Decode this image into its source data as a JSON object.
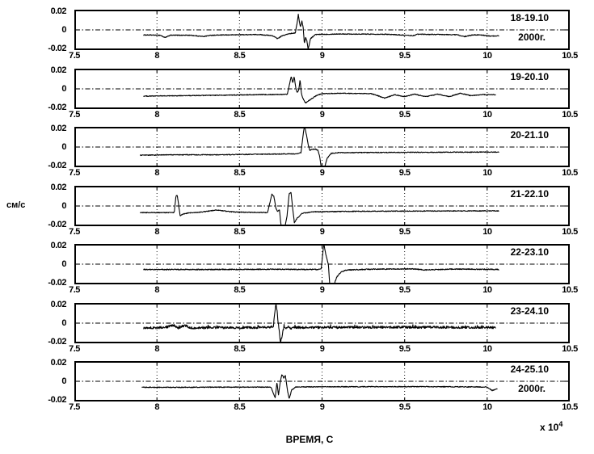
{
  "figure": {
    "ylabel": "см/с",
    "xlabel": "ВРЕМЯ, С",
    "x_multiplier": "x 10",
    "x_multiplier_exp": "4"
  },
  "chart_data": {
    "type": "line",
    "title": "",
    "xlabel": "ВРЕМЯ, С",
    "ylabel": "см/с",
    "x_scale_note": "x 10^4 seconds",
    "xlim": [
      7.5,
      10.5
    ],
    "ylim": [
      -0.02,
      0.02
    ],
    "xticks": [
      7.5,
      8,
      8.5,
      9,
      9.5,
      10,
      10.5
    ],
    "xtick_labels": [
      "7.5",
      "8",
      "8.5",
      "9",
      "9.5",
      "10",
      "10.5"
    ],
    "yticks": [
      0.02,
      0,
      -0.02
    ],
    "ytick_labels": [
      "0.02",
      "0",
      "-0.02"
    ],
    "grid": true,
    "legend": "none",
    "line_color": "#000000",
    "panels": [
      {
        "label": "18-19.10",
        "sublabel": "2000г.",
        "x_start": 7.92,
        "x_end": 10.07,
        "baseline": -0.005,
        "noise": 0.0004,
        "keypoints": [
          [
            7.92,
            -0.0052
          ],
          [
            8.02,
            -0.0055
          ],
          [
            8.05,
            -0.008
          ],
          [
            8.08,
            -0.0055
          ],
          [
            8.2,
            -0.0055
          ],
          [
            8.28,
            -0.0068
          ],
          [
            8.33,
            -0.0055
          ],
          [
            8.5,
            -0.005
          ],
          [
            8.62,
            -0.0048
          ],
          [
            8.7,
            -0.006
          ],
          [
            8.73,
            -0.009
          ],
          [
            8.76,
            -0.006
          ],
          [
            8.8,
            -0.004
          ],
          [
            8.838,
            -0.003
          ],
          [
            8.848,
            0.006
          ],
          [
            8.856,
            0.016
          ],
          [
            8.863,
            0.008
          ],
          [
            8.869,
            0.003
          ],
          [
            8.878,
            0.009
          ],
          [
            8.886,
            0.002
          ],
          [
            8.893,
            -0.014
          ],
          [
            8.9,
            -0.008
          ],
          [
            8.908,
            -0.011
          ],
          [
            8.916,
            -0.02
          ],
          [
            8.93,
            -0.009
          ],
          [
            8.96,
            -0.0048
          ],
          [
            9.1,
            -0.0042
          ],
          [
            9.4,
            -0.0045
          ],
          [
            9.55,
            -0.006
          ],
          [
            9.58,
            -0.0045
          ],
          [
            9.82,
            -0.005
          ],
          [
            9.86,
            -0.007
          ],
          [
            9.92,
            -0.005
          ],
          [
            9.98,
            -0.0055
          ],
          [
            10.02,
            -0.0065
          ],
          [
            10.07,
            -0.006
          ]
        ]
      },
      {
        "label": "19-20.10",
        "sublabel": "",
        "x_start": 7.92,
        "x_end": 10.05,
        "baseline": -0.006,
        "noise": 0.0004,
        "keypoints": [
          [
            7.92,
            -0.0075
          ],
          [
            8.3,
            -0.0068
          ],
          [
            8.6,
            -0.006
          ],
          [
            8.75,
            -0.0058
          ],
          [
            8.79,
            -0.0055
          ],
          [
            8.803,
            0.005
          ],
          [
            8.813,
            0.013
          ],
          [
            8.823,
            0.006
          ],
          [
            8.831,
            0.0125
          ],
          [
            8.841,
            0.001
          ],
          [
            8.849,
            -0.004
          ],
          [
            8.859,
            -0.001
          ],
          [
            8.867,
            0.0095
          ],
          [
            8.875,
            -0.005
          ],
          [
            8.883,
            -0.0095
          ],
          [
            8.9,
            -0.0145
          ],
          [
            8.93,
            -0.011
          ],
          [
            8.97,
            -0.0065
          ],
          [
            9.0,
            -0.005
          ],
          [
            9.1,
            -0.0045
          ],
          [
            9.3,
            -0.005
          ],
          [
            9.38,
            -0.0095
          ],
          [
            9.44,
            -0.006
          ],
          [
            9.5,
            -0.008
          ],
          [
            9.56,
            -0.0055
          ],
          [
            9.63,
            -0.008
          ],
          [
            9.7,
            -0.0055
          ],
          [
            9.77,
            -0.008
          ],
          [
            9.84,
            -0.0045
          ],
          [
            9.9,
            -0.007
          ],
          [
            9.97,
            -0.006
          ],
          [
            10.05,
            -0.006
          ]
        ]
      },
      {
        "label": "20-21.10",
        "sublabel": "",
        "x_start": 7.9,
        "x_end": 10.07,
        "baseline": -0.008,
        "noise": 0.0004,
        "keypoints": [
          [
            7.9,
            -0.0085
          ],
          [
            8.1,
            -0.008
          ],
          [
            8.4,
            -0.008
          ],
          [
            8.6,
            -0.0075
          ],
          [
            8.84,
            -0.007
          ],
          [
            8.872,
            -0.006
          ],
          [
            8.882,
            0.008
          ],
          [
            8.893,
            0.022
          ],
          [
            8.905,
            0.013
          ],
          [
            8.917,
            0.002
          ],
          [
            8.926,
            -0.0035
          ],
          [
            8.94,
            -0.0025
          ],
          [
            8.96,
            -0.002
          ],
          [
            8.975,
            -0.0035
          ],
          [
            8.986,
            -0.01
          ],
          [
            8.996,
            -0.023
          ],
          [
            9.012,
            -0.023
          ],
          [
            9.03,
            -0.012
          ],
          [
            9.055,
            -0.0065
          ],
          [
            9.1,
            -0.0058
          ],
          [
            9.5,
            -0.0055
          ],
          [
            10.0,
            -0.0052
          ],
          [
            10.07,
            -0.0052
          ]
        ]
      },
      {
        "label": "21-22.10",
        "sublabel": "",
        "x_start": 7.9,
        "x_end": 10.07,
        "baseline": -0.0068,
        "noise": 0.0004,
        "keypoints": [
          [
            7.9,
            -0.0068
          ],
          [
            8.08,
            -0.0068
          ],
          [
            8.105,
            -0.0068
          ],
          [
            8.115,
            0.01
          ],
          [
            8.123,
            0.0115
          ],
          [
            8.131,
            0.002
          ],
          [
            8.14,
            -0.01
          ],
          [
            8.155,
            -0.0085
          ],
          [
            8.19,
            -0.0072
          ],
          [
            8.28,
            -0.006
          ],
          [
            8.36,
            -0.0042
          ],
          [
            8.45,
            -0.006
          ],
          [
            8.55,
            -0.0065
          ],
          [
            8.67,
            -0.0068
          ],
          [
            8.696,
            0.012
          ],
          [
            8.708,
            0.0105
          ],
          [
            8.72,
            -0.002
          ],
          [
            8.73,
            -0.0055
          ],
          [
            8.742,
            -0.004
          ],
          [
            8.752,
            -0.021
          ],
          [
            8.775,
            -0.022
          ],
          [
            8.788,
            -0.01
          ],
          [
            8.801,
            0.013
          ],
          [
            8.812,
            0.014
          ],
          [
            8.822,
            -0.002
          ],
          [
            8.832,
            -0.017
          ],
          [
            8.85,
            -0.0125
          ],
          [
            8.88,
            -0.0075
          ],
          [
            8.95,
            -0.006
          ],
          [
            9.2,
            -0.0055
          ],
          [
            9.6,
            -0.0052
          ],
          [
            10.07,
            -0.005
          ]
        ]
      },
      {
        "label": "22-23.10",
        "sublabel": "",
        "x_start": 7.92,
        "x_end": 10.07,
        "baseline": -0.0055,
        "noise": 0.0005,
        "keypoints": [
          [
            7.92,
            -0.0055
          ],
          [
            8.3,
            -0.0055
          ],
          [
            8.7,
            -0.0053
          ],
          [
            8.97,
            -0.0055
          ],
          [
            8.995,
            -0.005
          ],
          [
            9.003,
            0.009
          ],
          [
            9.011,
            0.021
          ],
          [
            9.019,
            0.013
          ],
          [
            9.028,
            0.0065
          ],
          [
            9.038,
            0.0
          ],
          [
            9.047,
            -0.022
          ],
          [
            9.07,
            -0.022
          ],
          [
            9.09,
            -0.013
          ],
          [
            9.115,
            -0.008
          ],
          [
            9.15,
            -0.006
          ],
          [
            9.3,
            -0.0052
          ],
          [
            9.55,
            -0.0048
          ],
          [
            9.62,
            -0.006
          ],
          [
            9.8,
            -0.005
          ],
          [
            10.07,
            -0.0055
          ]
        ]
      },
      {
        "label": "23-24.10",
        "sublabel": "",
        "x_start": 7.92,
        "x_end": 10.05,
        "baseline": -0.0045,
        "noise": 0.0012,
        "spike_prob": 0.03,
        "spike_amp": 0.003,
        "keypoints": [
          [
            7.92,
            -0.0048
          ],
          [
            8.05,
            -0.0045
          ],
          [
            8.1,
            -0.002
          ],
          [
            8.13,
            -0.005
          ],
          [
            8.17,
            -0.0022
          ],
          [
            8.2,
            -0.005
          ],
          [
            8.35,
            -0.0045
          ],
          [
            8.5,
            -0.0048
          ],
          [
            8.68,
            -0.0042
          ],
          [
            8.706,
            -0.003
          ],
          [
            8.714,
            0.012
          ],
          [
            8.721,
            0.021
          ],
          [
            8.728,
            0.013
          ],
          [
            8.734,
            0.001
          ],
          [
            8.741,
            -0.009
          ],
          [
            8.748,
            -0.021
          ],
          [
            8.758,
            -0.013
          ],
          [
            8.77,
            -0.0025
          ],
          [
            8.782,
            -0.006
          ],
          [
            8.795,
            -0.0028
          ],
          [
            8.81,
            -0.0055
          ],
          [
            8.83,
            -0.0045
          ],
          [
            9.0,
            -0.0045
          ],
          [
            9.5,
            -0.0042
          ],
          [
            10.05,
            -0.0045
          ]
        ]
      },
      {
        "label": "24-25.10",
        "sublabel": "2000г.",
        "x_start": 7.91,
        "x_end": 10.06,
        "baseline": -0.0062,
        "noise": 0.0004,
        "keypoints": [
          [
            7.91,
            -0.0062
          ],
          [
            8.2,
            -0.0062
          ],
          [
            8.5,
            -0.006
          ],
          [
            8.69,
            -0.006
          ],
          [
            8.716,
            -0.017
          ],
          [
            8.727,
            -0.001
          ],
          [
            8.736,
            -0.014
          ],
          [
            8.748,
            0.0005
          ],
          [
            8.757,
            0.007
          ],
          [
            8.768,
            0.0035
          ],
          [
            8.778,
            0.006
          ],
          [
            8.79,
            -0.009
          ],
          [
            8.801,
            -0.018
          ],
          [
            8.816,
            -0.009
          ],
          [
            8.84,
            -0.006
          ],
          [
            8.87,
            -0.0058
          ],
          [
            9.2,
            -0.0056
          ],
          [
            9.6,
            -0.0055
          ],
          [
            9.95,
            -0.0058
          ],
          [
            10.0,
            -0.006
          ],
          [
            10.03,
            -0.0095
          ],
          [
            10.06,
            -0.008
          ]
        ]
      }
    ]
  }
}
